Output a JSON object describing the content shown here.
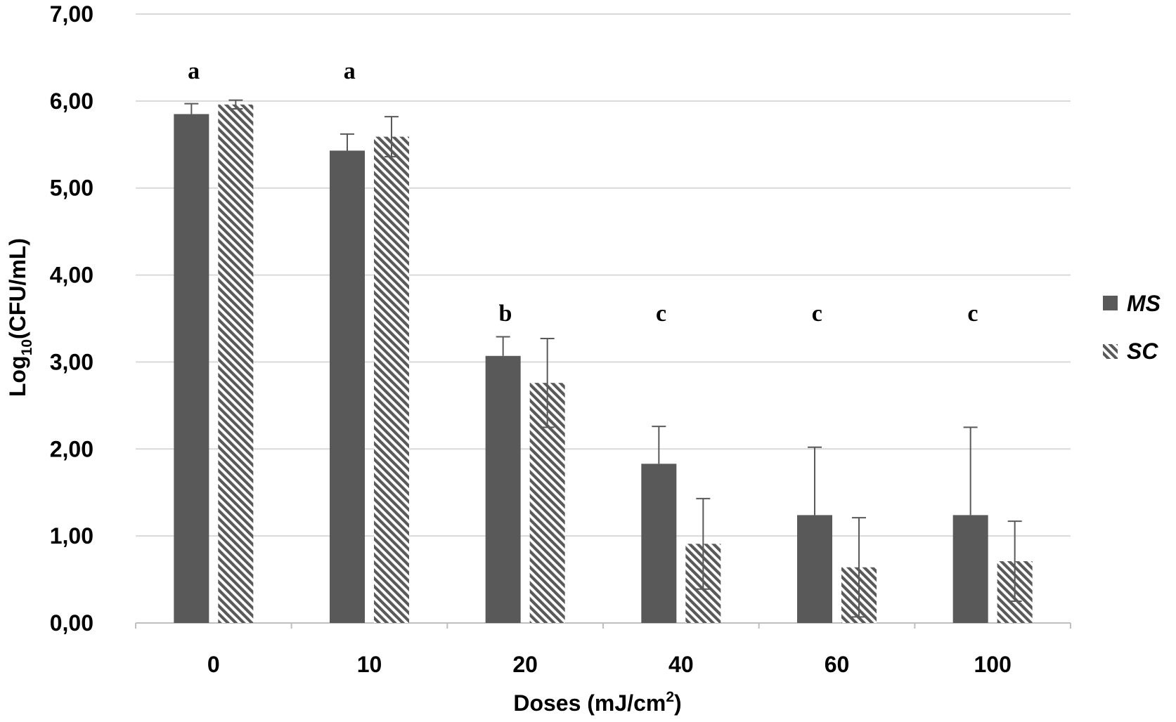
{
  "chart_data": {
    "type": "bar",
    "title": "",
    "xlabel": "Doses (mJ/cm",
    "xlabel_superscript": "2",
    "xlabel_suffix": ")",
    "ylabel_prefix": "Log",
    "ylabel_subscript": "10",
    "ylabel_suffix": "(CFU/mL)",
    "ylim": [
      0,
      7
    ],
    "yticks": [
      0,
      1,
      2,
      3,
      4,
      5,
      6,
      7
    ],
    "ytick_labels": [
      "0,00",
      "1,00",
      "2,00",
      "3,00",
      "4,00",
      "5,00",
      "6,00",
      "7,00"
    ],
    "grid": true,
    "legend_position": "right",
    "categories": [
      "0",
      "10",
      "20",
      "40",
      "60",
      "100"
    ],
    "significance_labels": [
      "a",
      "a",
      "b",
      "c",
      "c",
      "c"
    ],
    "series": [
      {
        "name": "MS",
        "pattern": "solid",
        "color": "#595959",
        "values": [
          5.85,
          5.43,
          3.07,
          1.83,
          1.24,
          1.24
        ],
        "errors": [
          0.12,
          0.19,
          0.22,
          0.43,
          0.78,
          1.01
        ]
      },
      {
        "name": "SC",
        "pattern": "diagonal-hatch",
        "color": "#595959",
        "values": [
          5.96,
          5.59,
          2.76,
          0.91,
          0.64,
          0.71
        ],
        "errors": [
          0.05,
          0.23,
          0.51,
          0.52,
          0.57,
          0.46
        ]
      }
    ]
  }
}
